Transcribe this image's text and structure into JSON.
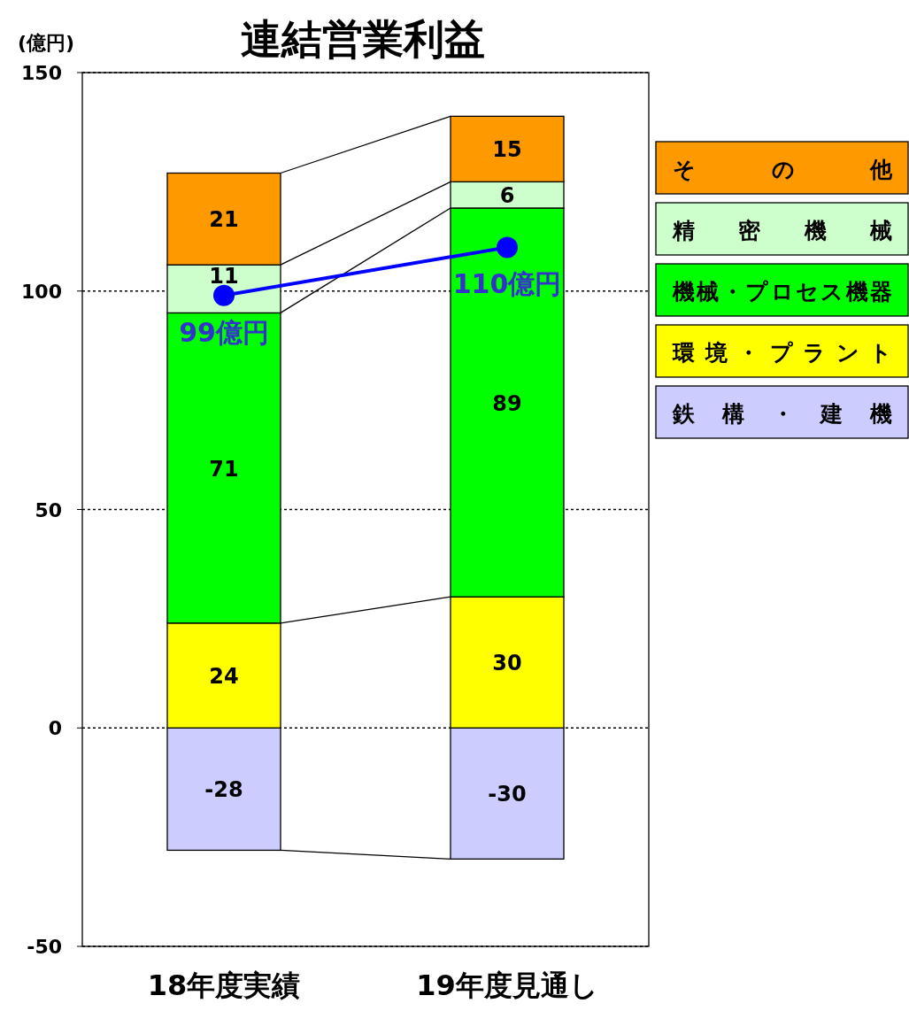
{
  "chart_data": {
    "type": "bar",
    "title": "連結営業利益",
    "ylabel": "(億円)",
    "categories": [
      "18年度実績",
      "19年度見通し"
    ],
    "stacked": true,
    "ylim": [
      -50,
      150
    ],
    "yticks": [
      -50,
      0,
      50,
      100,
      150
    ],
    "grid": "y",
    "legend": "right",
    "marker": "circle",
    "series": [
      {
        "name": "鉄構・建機",
        "color": "#ccccff",
        "values": [
          -28,
          -30
        ],
        "value_labels": [
          "-28",
          "-30"
        ]
      },
      {
        "name": "環境・プラント",
        "color": "#ffff00",
        "values": [
          24,
          30
        ],
        "value_labels": [
          "24",
          "30"
        ]
      },
      {
        "name": "機械・プロセス機器",
        "color": "#00ff00",
        "values": [
          71,
          89
        ],
        "value_labels": [
          "71",
          "89"
        ]
      },
      {
        "name": "精密機械",
        "color": "#ccffcc",
        "values": [
          11,
          6
        ],
        "value_labels": [
          "11",
          "6"
        ]
      },
      {
        "name": "その他",
        "color": "#ff9900",
        "values": [
          21,
          15
        ],
        "value_labels": [
          "21",
          "15"
        ]
      },
      {
        "type": "line",
        "color": "#0000ff",
        "values": [
          99,
          110
        ],
        "value_labels": [
          "99億円",
          "110億円"
        ]
      }
    ]
  }
}
